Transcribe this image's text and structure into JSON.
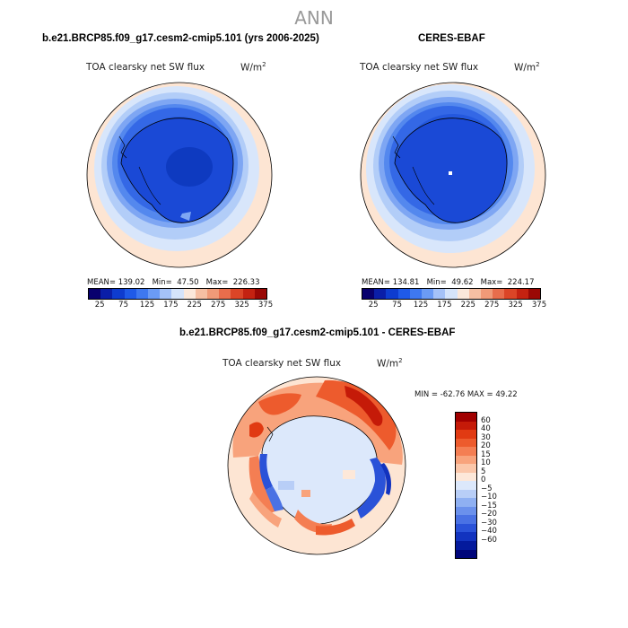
{
  "page_title": "ANN",
  "colors": {
    "land_blue": "#1a49d6",
    "land_deep": "#0e3ac0",
    "ocean_light": "#fde5d3",
    "coast_line": "#000000"
  },
  "panels": {
    "model": {
      "title": "b.e21.BRCP85.f09_g17.cesm2-cmip5.101 (yrs 2006-2025)",
      "variable": "TOA clearsky net SW flux",
      "units_base": "W/m",
      "units_exp": "2",
      "stats": {
        "mean_label": "MEAN=",
        "mean": "139.02",
        "min_label": "Min=",
        "min": "47.50",
        "max_label": "Max=",
        "max": "226.33"
      }
    },
    "obs": {
      "title": "CERES-EBAF",
      "variable": "TOA clearsky net SW flux",
      "units_base": "W/m",
      "units_exp": "2",
      "stats": {
        "mean_label": "MEAN=",
        "mean": "134.81",
        "min_label": "Min=",
        "min": "49.62",
        "max_label": "Max=",
        "max": "224.17"
      }
    },
    "diff": {
      "title": "b.e21.BRCP85.f09_g17.cesm2-cmip5.101 - CERES-EBAF",
      "variable": "TOA clearsky net SW flux",
      "units_base": "W/m",
      "units_exp": "2",
      "minmax": "MIN = -62.76 MAX =  49.22"
    }
  },
  "abs_colorbar": {
    "colors": [
      "#08006e",
      "#0a1ea8",
      "#0e3ccf",
      "#1f5ae8",
      "#3e78f0",
      "#6b9bf5",
      "#a5c2f8",
      "#d5e4fb",
      "#fbe8db",
      "#f6bfa3",
      "#f09a78",
      "#e86d4c",
      "#db4527",
      "#c42211",
      "#9a0805"
    ],
    "tick_labels": [
      "25",
      "75",
      "125",
      "175",
      "225",
      "275",
      "325",
      "375"
    ]
  },
  "diff_colorbar": {
    "colors": [
      "#a10000",
      "#c51a08",
      "#e13a12",
      "#ed5b2d",
      "#f47e53",
      "#f8a37c",
      "#fbc7aa",
      "#fde8d9",
      "#dce8fb",
      "#b8cef7",
      "#8fb0f2",
      "#6b91ec",
      "#4a72e4",
      "#2a52d8",
      "#1233bf",
      "#041a9c",
      "#00057a"
    ],
    "tick_labels": [
      "60",
      "40",
      "30",
      "20",
      "15",
      "10",
      "5",
      "0",
      "−5",
      "−10",
      "−15",
      "−20",
      "−30",
      "−40",
      "−60"
    ]
  }
}
